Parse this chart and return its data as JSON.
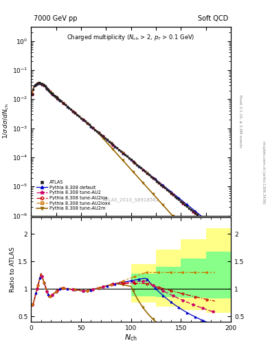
{
  "title_left": "7000 GeV pp",
  "title_right": "Soft QCD",
  "subtitle": "Charged multiplicity (N_{ch} > 2, p_{T} > 0.1 GeV)",
  "watermark": "ATLAS_2010_S8918562",
  "rivet_label": "Rivet 3.1.10, ≥ 2.6M events",
  "mcplots_label": "mcplots.cern.ch [arXiv:1306.3436]",
  "ylabel_main": "1/σ dσ/dN_{ch}",
  "ylabel_ratio": "Ratio to ATLAS",
  "xlabel": "N_{ch}",
  "xlim": [
    0,
    200
  ],
  "ylim_main_log": [
    -6,
    0.5
  ],
  "ylim_ratio": [
    0.4,
    2.3
  ],
  "c_atlas": "#222222",
  "c_default": "#0000cc",
  "c_au2": "#cc0066",
  "c_au2lox": "#cc0000",
  "c_au2loxx": "#cc7700",
  "c_au2m": "#996600",
  "yellow_band": "#ffff88",
  "green_band": "#88ff88"
}
